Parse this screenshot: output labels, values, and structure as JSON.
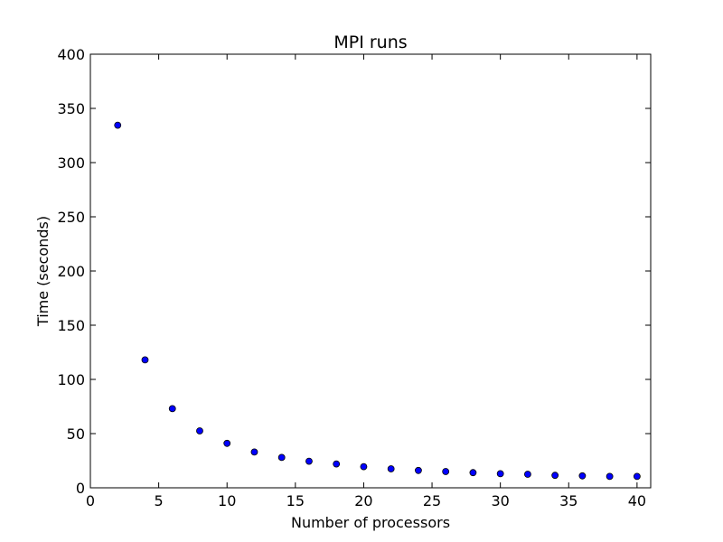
{
  "chart_data": {
    "type": "scatter",
    "title": "MPI runs",
    "xlabel": "Number of processors",
    "ylabel": "Time (seconds)",
    "xlim": [
      0,
      41
    ],
    "ylim": [
      0,
      400
    ],
    "xticks": [
      0,
      5,
      10,
      15,
      20,
      25,
      30,
      35,
      40
    ],
    "yticks": [
      0,
      50,
      100,
      150,
      200,
      250,
      300,
      350,
      400
    ],
    "grid": false,
    "marker_color": "#0000ff",
    "series": [
      {
        "x": [
          2,
          4,
          6,
          8,
          10,
          12,
          14,
          16,
          18,
          20,
          22,
          24,
          26,
          28,
          30,
          32,
          34,
          36,
          38,
          40
        ],
        "y": [
          334.5,
          118,
          73,
          52.5,
          41,
          33,
          28,
          24.5,
          22,
          19.5,
          17.5,
          16,
          15,
          14,
          13,
          12.5,
          11.5,
          11,
          10.5,
          10.5
        ]
      }
    ]
  }
}
